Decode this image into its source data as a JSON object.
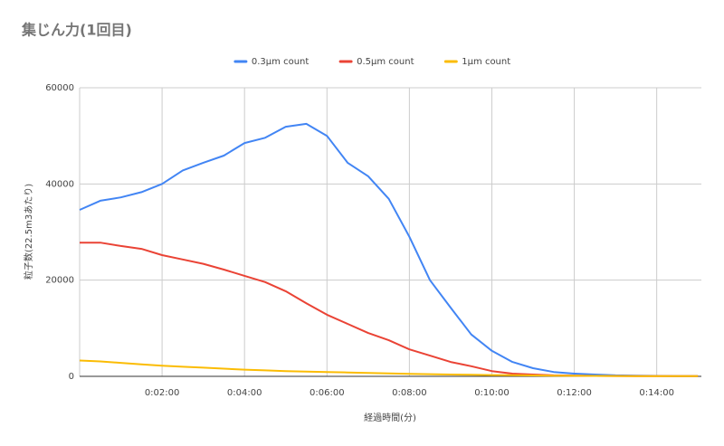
{
  "chart_data": {
    "type": "line",
    "title": "集じん力(1回目)",
    "x_label": "経過時間(分)",
    "y_label": "粒子数(22.5m3あたり)",
    "x": [
      0,
      30,
      60,
      90,
      120,
      150,
      180,
      210,
      240,
      270,
      300,
      330,
      360,
      390,
      420,
      450,
      480,
      510,
      540,
      570,
      600,
      630,
      660,
      690,
      720,
      750,
      780,
      810,
      840,
      870,
      900
    ],
    "series": [
      {
        "name": "0.3µm count",
        "color": "#4285f4",
        "values": [
          34600,
          36500,
          37200,
          38300,
          40000,
          42800,
          44400,
          45900,
          48500,
          49600,
          51900,
          52500,
          50000,
          44400,
          41600,
          36900,
          29000,
          20000,
          14300,
          8700,
          5300,
          3000,
          1700,
          900,
          560,
          380,
          200,
          150,
          100,
          60,
          40
        ]
      },
      {
        "name": "0.5µm count",
        "color": "#ea4335",
        "values": [
          27800,
          27800,
          27100,
          26500,
          25200,
          24300,
          23400,
          22200,
          20900,
          19600,
          17700,
          15200,
          12800,
          10900,
          9000,
          7500,
          5600,
          4300,
          3000,
          2100,
          1100,
          560,
          380,
          200,
          150,
          100,
          80,
          60,
          50,
          40,
          30
        ]
      },
      {
        "name": "1µm count",
        "color": "#fbbc04",
        "values": [
          3300,
          3100,
          2800,
          2500,
          2200,
          2000,
          1800,
          1600,
          1400,
          1250,
          1100,
          1000,
          900,
          800,
          700,
          600,
          520,
          450,
          380,
          320,
          270,
          220,
          180,
          150,
          120,
          100,
          80,
          60,
          50,
          40,
          30
        ]
      }
    ],
    "xlim": [
      0,
      905
    ],
    "xticks": [
      {
        "value": 120,
        "label": "0:02:00"
      },
      {
        "value": 240,
        "label": "0:04:00"
      },
      {
        "value": 360,
        "label": "0:06:00"
      },
      {
        "value": 480,
        "label": "0:08:00"
      },
      {
        "value": 600,
        "label": "0:10:00"
      },
      {
        "value": 720,
        "label": "0:12:00"
      },
      {
        "value": 840,
        "label": "0:14:00"
      }
    ],
    "ylim": [
      0,
      60000
    ],
    "yticks": [
      0,
      20000,
      40000,
      60000
    ],
    "grid": true,
    "legend": "top"
  }
}
